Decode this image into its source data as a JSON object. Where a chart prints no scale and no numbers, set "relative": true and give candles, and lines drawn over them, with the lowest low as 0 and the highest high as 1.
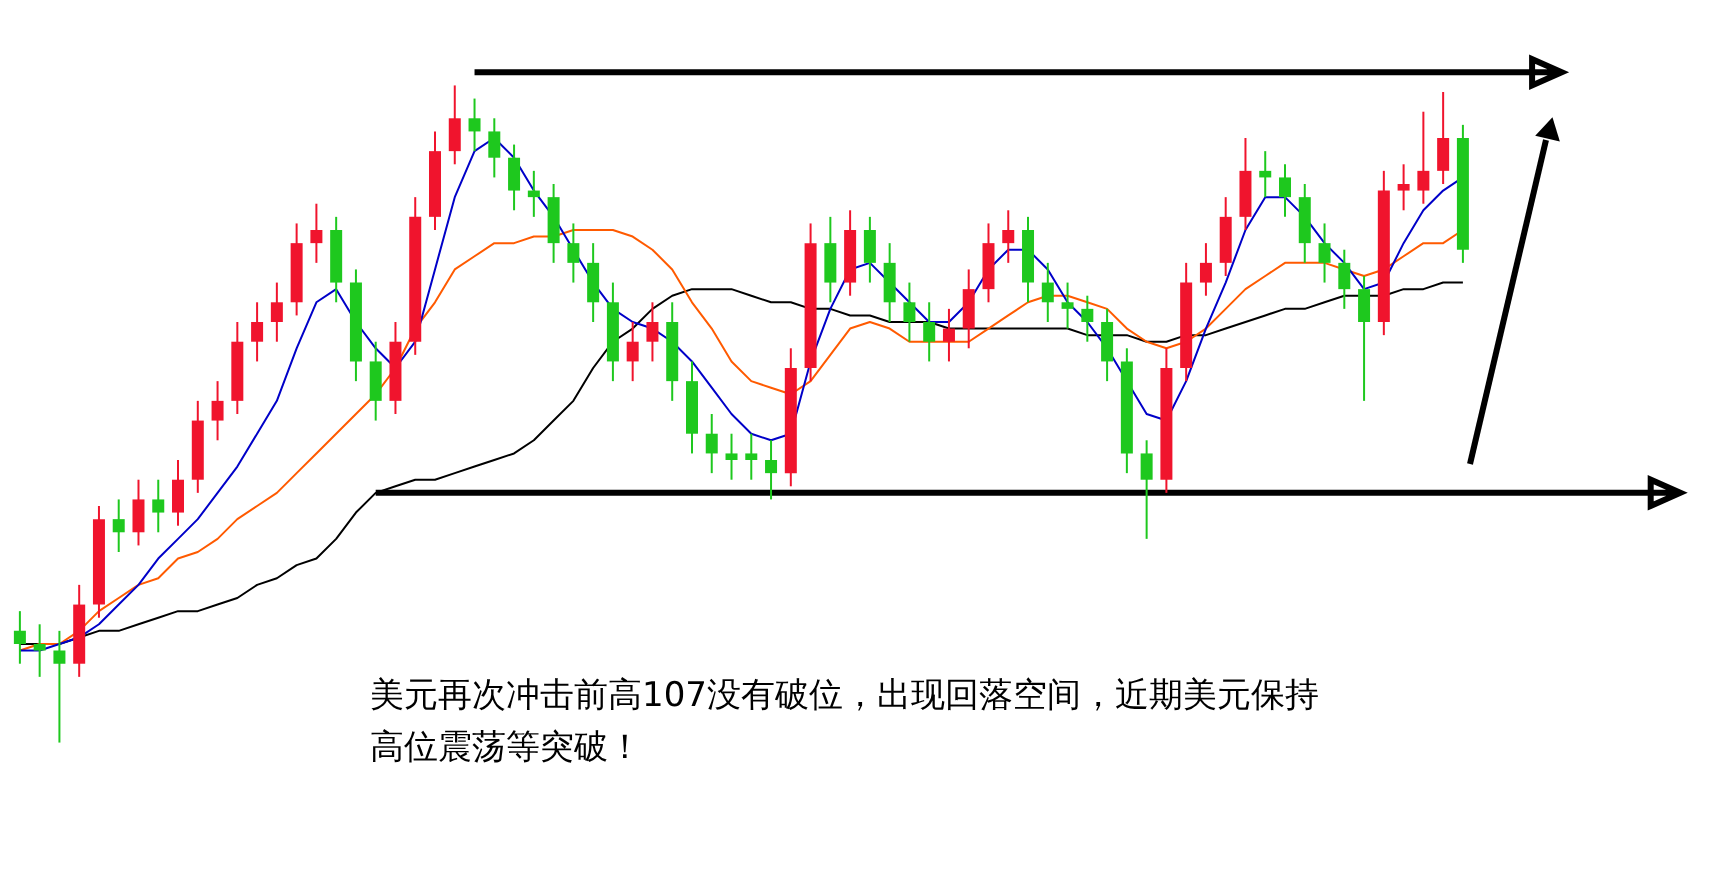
{
  "chart_data": {
    "type": "candlestick",
    "relative": true,
    "categories": [
      null,
      null,
      null,
      null,
      null,
      null,
      null,
      null,
      null,
      null,
      null,
      null,
      null,
      null,
      null,
      null,
      null,
      null,
      null,
      null,
      null,
      null,
      null,
      null,
      null,
      null,
      null,
      null,
      null,
      null,
      null,
      null,
      null,
      null,
      null,
      null,
      null,
      null,
      null,
      null,
      null,
      null,
      null,
      null,
      null,
      null,
      null,
      null,
      null,
      null,
      null,
      null,
      null,
      null,
      null,
      null,
      null,
      null,
      null,
      null,
      null,
      null,
      null,
      null,
      null,
      null,
      null,
      null,
      null,
      null,
      null,
      null,
      null,
      null
    ],
    "ohlc": [
      [
        0.17,
        0.2,
        0.12,
        0.15
      ],
      [
        0.15,
        0.18,
        0.1,
        0.14
      ],
      [
        0.14,
        0.17,
        0,
        0.12
      ],
      [
        0.12,
        0.24,
        0.1,
        0.21
      ],
      [
        0.21,
        0.36,
        0.19,
        0.34
      ],
      [
        0.34,
        0.37,
        0.29,
        0.32
      ],
      [
        0.32,
        0.4,
        0.3,
        0.37
      ],
      [
        0.37,
        0.4,
        0.32,
        0.35
      ],
      [
        0.35,
        0.43,
        0.33,
        0.4
      ],
      [
        0.4,
        0.52,
        0.38,
        0.49
      ],
      [
        0.49,
        0.55,
        0.46,
        0.52
      ],
      [
        0.52,
        0.64,
        0.5,
        0.61
      ],
      [
        0.61,
        0.67,
        0.58,
        0.64
      ],
      [
        0.64,
        0.7,
        0.61,
        0.67
      ],
      [
        0.67,
        0.79,
        0.65,
        0.76
      ],
      [
        0.76,
        0.82,
        0.73,
        0.78
      ],
      [
        0.78,
        0.8,
        0.67,
        0.7
      ],
      [
        0.7,
        0.72,
        0.55,
        0.58
      ],
      [
        0.58,
        0.61,
        0.49,
        0.52
      ],
      [
        0.52,
        0.64,
        0.5,
        0.61
      ],
      [
        0.61,
        0.83,
        0.59,
        0.8
      ],
      [
        0.8,
        0.93,
        0.78,
        0.9
      ],
      [
        0.9,
        1.0,
        0.88,
        0.95
      ],
      [
        0.95,
        0.98,
        0.9,
        0.93
      ],
      [
        0.93,
        0.95,
        0.86,
        0.89
      ],
      [
        0.89,
        0.91,
        0.81,
        0.84
      ],
      [
        0.84,
        0.87,
        0.8,
        0.83
      ],
      [
        0.83,
        0.85,
        0.73,
        0.76
      ],
      [
        0.76,
        0.79,
        0.7,
        0.73
      ],
      [
        0.73,
        0.76,
        0.64,
        0.67
      ],
      [
        0.67,
        0.7,
        0.55,
        0.58
      ],
      [
        0.58,
        0.64,
        0.55,
        0.61
      ],
      [
        0.61,
        0.67,
        0.58,
        0.64
      ],
      [
        0.64,
        0.67,
        0.52,
        0.55
      ],
      [
        0.55,
        0.58,
        0.44,
        0.47
      ],
      [
        0.47,
        0.5,
        0.41,
        0.44
      ],
      [
        0.44,
        0.47,
        0.4,
        0.43
      ],
      [
        0.44,
        0.47,
        0.4,
        0.43
      ],
      [
        0.43,
        0.46,
        0.37,
        0.41
      ],
      [
        0.41,
        0.6,
        0.39,
        0.57
      ],
      [
        0.57,
        0.79,
        0.55,
        0.76
      ],
      [
        0.76,
        0.8,
        0.67,
        0.7
      ],
      [
        0.7,
        0.81,
        0.68,
        0.78
      ],
      [
        0.78,
        0.8,
        0.7,
        0.73
      ],
      [
        0.73,
        0.76,
        0.64,
        0.67
      ],
      [
        0.67,
        0.7,
        0.61,
        0.64
      ],
      [
        0.64,
        0.67,
        0.58,
        0.61
      ],
      [
        0.61,
        0.66,
        0.58,
        0.63
      ],
      [
        0.63,
        0.72,
        0.6,
        0.69
      ],
      [
        0.69,
        0.79,
        0.67,
        0.76
      ],
      [
        0.76,
        0.81,
        0.73,
        0.78
      ],
      [
        0.78,
        0.8,
        0.67,
        0.7
      ],
      [
        0.7,
        0.73,
        0.64,
        0.67
      ],
      [
        0.67,
        0.7,
        0.63,
        0.66
      ],
      [
        0.66,
        0.68,
        0.61,
        0.64
      ],
      [
        0.64,
        0.66,
        0.55,
        0.58
      ],
      [
        0.58,
        0.6,
        0.41,
        0.44
      ],
      [
        0.44,
        0.46,
        0.31,
        0.4
      ],
      [
        0.4,
        0.6,
        0.38,
        0.57
      ],
      [
        0.57,
        0.73,
        0.55,
        0.7
      ],
      [
        0.7,
        0.76,
        0.68,
        0.73
      ],
      [
        0.73,
        0.83,
        0.71,
        0.8
      ],
      [
        0.8,
        0.92,
        0.78,
        0.87
      ],
      [
        0.87,
        0.9,
        0.83,
        0.86
      ],
      [
        0.86,
        0.88,
        0.8,
        0.83
      ],
      [
        0.83,
        0.85,
        0.73,
        0.76
      ],
      [
        0.76,
        0.79,
        0.7,
        0.73
      ],
      [
        0.73,
        0.75,
        0.66,
        0.69
      ],
      [
        0.69,
        0.71,
        0.52,
        0.64
      ],
      [
        0.64,
        0.87,
        0.62,
        0.84
      ],
      [
        0.84,
        0.88,
        0.81,
        0.85
      ],
      [
        0.84,
        0.96,
        0.82,
        0.87
      ],
      [
        0.87,
        0.99,
        0.85,
        0.92
      ],
      [
        0.92,
        0.94,
        0.73,
        0.75
      ]
    ],
    "colors": [
      "#1ec81e",
      "#1ec81e",
      "#1ec81e",
      "#f0142d",
      "#f0142d",
      "#1ec81e",
      "#f0142d",
      "#1ec81e",
      "#f0142d",
      "#f0142d",
      "#f0142d",
      "#f0142d",
      "#f0142d",
      "#f0142d",
      "#f0142d",
      "#f0142d",
      "#1ec81e",
      "#1ec81e",
      "#1ec81e",
      "#f0142d",
      "#f0142d",
      "#f0142d",
      "#f0142d",
      "#1ec81e",
      "#1ec81e",
      "#1ec81e",
      "#1ec81e",
      "#1ec81e",
      "#1ec81e",
      "#1ec81e",
      "#1ec81e",
      "#f0142d",
      "#f0142d",
      "#1ec81e",
      "#1ec81e",
      "#1ec81e",
      "#1ec81e",
      "#1ec81e",
      "#1ec81e",
      "#f0142d",
      "#f0142d",
      "#1ec81e",
      "#f0142d",
      "#1ec81e",
      "#1ec81e",
      "#1ec81e",
      "#1ec81e",
      "#f0142d",
      "#f0142d",
      "#f0142d",
      "#f0142d",
      "#1ec81e",
      "#1ec81e",
      "#1ec81e",
      "#1ec81e",
      "#1ec81e",
      "#1ec81e",
      "#1ec81e",
      "#f0142d",
      "#f0142d",
      "#f0142d",
      "#f0142d",
      "#f0142d",
      "#1ec81e",
      "#1ec81e",
      "#1ec81e",
      "#1ec81e",
      "#1ec81e",
      "#1ec81e",
      "#f0142d",
      "#f0142d",
      "#f0142d",
      "#f0142d",
      "#1ec81e"
    ],
    "series": [
      {
        "type": "line",
        "color": "#000000",
        "values": [
          0.15,
          0.15,
          0.15,
          0.16,
          0.17,
          0.17,
          0.18,
          0.19,
          0.2,
          0.2,
          0.21,
          0.22,
          0.24,
          0.25,
          0.27,
          0.28,
          0.31,
          0.35,
          0.38,
          0.39,
          0.4,
          0.4,
          0.41,
          0.42,
          0.43,
          0.44,
          0.46,
          0.49,
          0.52,
          0.57,
          0.61,
          0.63,
          0.66,
          0.68,
          0.69,
          0.69,
          0.69,
          0.68,
          0.67,
          0.67,
          0.66,
          0.66,
          0.65,
          0.65,
          0.64,
          0.64,
          0.64,
          0.63,
          0.63,
          0.63,
          0.63,
          0.63,
          0.63,
          0.63,
          0.62,
          0.62,
          0.62,
          0.61,
          0.61,
          0.62,
          0.62,
          0.63,
          0.64,
          0.65,
          0.66,
          0.66,
          0.67,
          0.68,
          0.68,
          0.68,
          0.69,
          0.69,
          0.7,
          0.7
        ]
      },
      {
        "type": "line",
        "color": "#ff5a00",
        "values": [
          0.14,
          0.15,
          0.15,
          0.17,
          0.2,
          0.22,
          0.24,
          0.25,
          0.28,
          0.29,
          0.31,
          0.34,
          0.36,
          0.38,
          0.41,
          0.44,
          0.47,
          0.5,
          0.53,
          0.57,
          0.63,
          0.67,
          0.72,
          0.74,
          0.76,
          0.76,
          0.77,
          0.77,
          0.78,
          0.78,
          0.78,
          0.77,
          0.75,
          0.72,
          0.67,
          0.63,
          0.58,
          0.55,
          0.54,
          0.53,
          0.55,
          0.59,
          0.63,
          0.64,
          0.63,
          0.61,
          0.61,
          0.61,
          0.61,
          0.63,
          0.65,
          0.67,
          0.68,
          0.68,
          0.67,
          0.66,
          0.63,
          0.61,
          0.6,
          0.61,
          0.63,
          0.66,
          0.69,
          0.71,
          0.73,
          0.73,
          0.73,
          0.72,
          0.71,
          0.72,
          0.74,
          0.76,
          0.76,
          0.78
        ]
      },
      {
        "type": "line",
        "color": "#0000c8",
        "values": [
          0.14,
          0.14,
          0.15,
          0.16,
          0.18,
          0.21,
          0.24,
          0.28,
          0.31,
          0.34,
          0.38,
          0.42,
          0.47,
          0.52,
          0.6,
          0.67,
          0.69,
          0.64,
          0.6,
          0.57,
          0.61,
          0.72,
          0.83,
          0.9,
          0.92,
          0.89,
          0.84,
          0.8,
          0.75,
          0.7,
          0.66,
          0.64,
          0.63,
          0.61,
          0.58,
          0.54,
          0.5,
          0.47,
          0.46,
          0.47,
          0.58,
          0.66,
          0.72,
          0.73,
          0.7,
          0.67,
          0.64,
          0.64,
          0.67,
          0.72,
          0.75,
          0.75,
          0.72,
          0.67,
          0.64,
          0.6,
          null,
          0.5,
          0.49,
          0.55,
          0.63,
          0.7,
          0.78,
          0.83,
          0.83,
          0.8,
          0.76,
          0.73,
          0.69,
          0.7,
          0.76,
          0.81,
          0.84,
          0.86
        ]
      }
    ],
    "ref_lines": [
      {
        "axis": "y",
        "value": 1.02,
        "color": "#000000"
      },
      {
        "axis": "y",
        "value": 0.38,
        "color": "#000000"
      }
    ],
    "annotations": [
      "美元再次冲击前高107没有破位，出现回落空间，近期美元保持高位震荡等突破！"
    ]
  }
}
